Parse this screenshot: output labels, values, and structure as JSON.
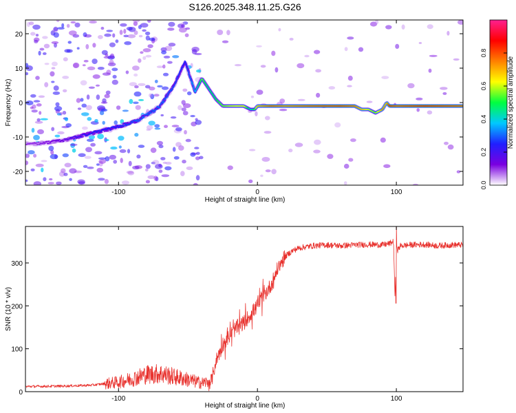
{
  "figure": {
    "title": "S126.2025.348.11.25.G26"
  },
  "chart_data": [
    {
      "type": "heatmap",
      "xlabel": "Height of straight line (km)",
      "ylabel": "Frequency (Hz)",
      "xlim": [
        -167,
        148
      ],
      "ylim": [
        -24,
        24
      ],
      "xticks": [
        -100,
        0,
        100
      ],
      "yticks": [
        -20,
        -10,
        0,
        10,
        20
      ],
      "colorbar": {
        "label": "Normalized spectral amplitude",
        "range": [
          0,
          1
        ],
        "ticks": [
          "0.0",
          "0.2",
          "0.4",
          "0.6",
          "0.8"
        ],
        "tick_values": [
          0,
          0.2,
          0.4,
          0.6,
          0.8
        ],
        "colors": [
          "#ffffff",
          "#7a00e0",
          "#2020ff",
          "#00c8ff",
          "#00ff40",
          "#ffff00",
          "#ff8000",
          "#ff0000",
          "#ff2090"
        ]
      },
      "ridge": {
        "x": [
          -160,
          -140,
          -120,
          -100,
          -85,
          -70,
          -60,
          -52,
          -45,
          -40,
          -35,
          -30,
          -25,
          -20,
          -10,
          -5,
          -2,
          0,
          5,
          10,
          20,
          40,
          60,
          70,
          75,
          80,
          85,
          90,
          93,
          95,
          100,
          120,
          148
        ],
        "f": [
          -12,
          -11,
          -9,
          -7,
          -5,
          -1,
          5,
          12,
          3,
          7,
          4,
          1,
          -1,
          -1,
          -1,
          -2,
          -2,
          -1,
          -1,
          -1,
          -1,
          -1,
          -1,
          -1,
          -2,
          -2,
          -3,
          -2,
          0,
          -1,
          -1,
          -1,
          -1
        ],
        "amp": [
          0.1,
          0.15,
          0.25,
          0.25,
          0.3,
          0.3,
          0.28,
          0.25,
          0.35,
          0.55,
          0.45,
          0.5,
          0.55,
          0.6,
          0.65,
          0.4,
          0.5,
          0.7,
          0.75,
          0.8,
          0.75,
          0.8,
          0.82,
          0.78,
          0.7,
          0.6,
          0.55,
          0.75,
          0.7,
          0.85,
          0.8,
          0.85,
          0.8
        ]
      }
    },
    {
      "type": "line",
      "xlabel": "Height of straight line (km)",
      "ylabel": "SNR (10 * v/v)",
      "xlim": [
        -167,
        148
      ],
      "ylim": [
        0,
        385
      ],
      "xticks": [
        -100,
        0,
        100
      ],
      "yticks": [
        0,
        100,
        200,
        300
      ],
      "color": "#e8312d",
      "series": [
        {
          "name": "SNR",
          "x": [
            -167,
            -140,
            -120,
            -100,
            -90,
            -80,
            -70,
            -60,
            -50,
            -40,
            -33,
            -30,
            -25,
            -20,
            -15,
            -10,
            -5,
            0,
            5,
            10,
            15,
            20,
            25,
            30,
            40,
            50,
            60,
            70,
            80,
            90,
            95,
            98,
            99,
            100,
            101,
            103,
            110,
            120,
            130,
            140,
            148
          ],
          "values": [
            12,
            13,
            15,
            22,
            30,
            40,
            42,
            35,
            28,
            20,
            25,
            70,
            110,
            130,
            150,
            160,
            180,
            200,
            225,
            250,
            290,
            315,
            328,
            335,
            340,
            342,
            340,
            342,
            343,
            342,
            345,
            350,
            215,
            345,
            330,
            340,
            342,
            343,
            340,
            342,
            342
          ]
        }
      ],
      "annotations": [
        {
          "x": 100,
          "value": 206,
          "note": "sharp dip"
        },
        {
          "x": 100,
          "value": 385,
          "note": "spike"
        }
      ]
    }
  ]
}
